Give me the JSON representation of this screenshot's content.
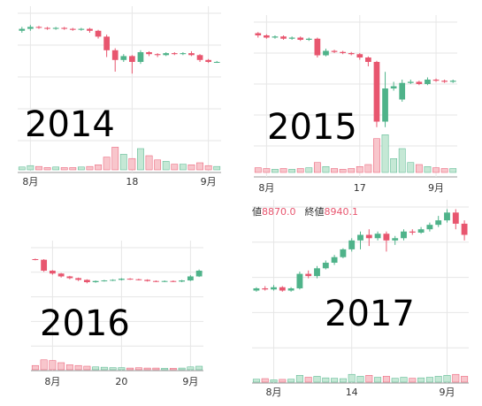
{
  "chart_data": [
    {
      "type": "candlestick",
      "annotation": "2014",
      "up_color": "#4fb38a",
      "down_color": "#e8566f",
      "volume_up_color": "#c5e8d5",
      "volume_down_color": "#f8c6cc",
      "categories": [
        null,
        "8月",
        null,
        null,
        null,
        null,
        null,
        null,
        null,
        null,
        null,
        null,
        null,
        "18",
        null,
        null,
        null,
        null,
        null,
        null,
        null,
        null,
        "9月",
        null
      ],
      "ohlc": [
        [
          82,
          84,
          86,
          80
        ],
        [
          84,
          86,
          88,
          82
        ],
        [
          86,
          85,
          87,
          84
        ],
        [
          85,
          84,
          86,
          83
        ],
        [
          84,
          85,
          86,
          83
        ],
        [
          85,
          84,
          86,
          83
        ],
        [
          84,
          83,
          85,
          82
        ],
        [
          83,
          84,
          85,
          82
        ],
        [
          84,
          82,
          85,
          80
        ],
        [
          82,
          76,
          83,
          74
        ],
        [
          76,
          62,
          78,
          55
        ],
        [
          62,
          52,
          64,
          40
        ],
        [
          52,
          56,
          58,
          50
        ],
        [
          56,
          50,
          57,
          38
        ],
        [
          50,
          60,
          62,
          48
        ],
        [
          60,
          58,
          61,
          56
        ],
        [
          58,
          57,
          59,
          55
        ],
        [
          57,
          59,
          60,
          56
        ],
        [
          59,
          58,
          60,
          57
        ],
        [
          58,
          59,
          60,
          57
        ],
        [
          59,
          57,
          61,
          56
        ],
        [
          57,
          52,
          58,
          50
        ],
        [
          52,
          50,
          53,
          49
        ],
        [
          50,
          50,
          51,
          49
        ]
      ],
      "volume": [
        10,
        15,
        12,
        8,
        10,
        8,
        8,
        10,
        12,
        18,
        45,
        80,
        55,
        40,
        75,
        50,
        35,
        30,
        20,
        20,
        18,
        25,
        15,
        12
      ],
      "ylim": [
        0,
        100
      ],
      "volume_lim": [
        0,
        100
      ]
    },
    {
      "type": "candlestick",
      "annotation": "2015",
      "up_color": "#4fb38a",
      "down_color": "#e8566f",
      "volume_up_color": "#c5e8d5",
      "volume_down_color": "#f8c6cc",
      "categories": [
        null,
        "8月",
        null,
        null,
        null,
        null,
        null,
        null,
        null,
        null,
        null,
        null,
        "17",
        null,
        null,
        null,
        null,
        null,
        null,
        null,
        null,
        "9月",
        null,
        null
      ],
      "ohlc": [
        [
          90,
          88,
          91,
          86
        ],
        [
          88,
          86,
          89,
          85
        ],
        [
          86,
          87,
          88,
          85
        ],
        [
          87,
          85,
          88,
          84
        ],
        [
          85,
          86,
          87,
          84
        ],
        [
          86,
          84,
          87,
          83
        ],
        [
          84,
          85,
          86,
          83
        ],
        [
          85,
          70,
          86,
          68
        ],
        [
          70,
          74,
          76,
          69
        ],
        [
          74,
          73,
          75,
          72
        ],
        [
          73,
          72,
          74,
          71
        ],
        [
          72,
          71,
          73,
          70
        ],
        [
          71,
          68,
          72,
          66
        ],
        [
          68,
          64,
          69,
          60
        ],
        [
          64,
          10,
          65,
          5
        ],
        [
          10,
          40,
          55,
          5
        ],
        [
          40,
          42,
          46,
          38
        ],
        [
          30,
          45,
          48,
          28
        ],
        [
          45,
          46,
          48,
          44
        ],
        [
          46,
          44,
          47,
          43
        ],
        [
          44,
          48,
          50,
          43
        ],
        [
          48,
          47,
          49,
          46
        ],
        [
          47,
          46,
          48,
          45
        ],
        [
          46,
          47,
          48,
          45
        ]
      ],
      "volume": [
        12,
        10,
        8,
        10,
        8,
        10,
        12,
        25,
        15,
        10,
        8,
        10,
        15,
        20,
        85,
        95,
        35,
        60,
        25,
        20,
        15,
        12,
        10,
        10
      ],
      "ylim": [
        0,
        100
      ],
      "volume_lim": [
        0,
        100
      ]
    },
    {
      "type": "candlestick",
      "annotation": "2016",
      "up_color": "#4fb38a",
      "down_color": "#e8566f",
      "volume_up_color": "#c5e8d5",
      "volume_down_color": "#f8c6cc",
      "categories": [
        null,
        null,
        "8月",
        null,
        null,
        null,
        null,
        null,
        null,
        null,
        "20",
        null,
        null,
        null,
        null,
        null,
        null,
        null,
        "9月",
        null
      ],
      "ohlc": [
        [
          80,
          79,
          81,
          78
        ],
        [
          79,
          60,
          80,
          58
        ],
        [
          60,
          55,
          61,
          53
        ],
        [
          55,
          50,
          56,
          48
        ],
        [
          50,
          47,
          51,
          45
        ],
        [
          47,
          44,
          48,
          42
        ],
        [
          44,
          40,
          45,
          38
        ],
        [
          40,
          42,
          43,
          39
        ],
        [
          42,
          43,
          44,
          41
        ],
        [
          43,
          44,
          45,
          42
        ],
        [
          44,
          46,
          47,
          43
        ],
        [
          46,
          45,
          47,
          44
        ],
        [
          45,
          44,
          46,
          43
        ],
        [
          44,
          42,
          45,
          41
        ],
        [
          42,
          41,
          43,
          40
        ],
        [
          41,
          42,
          43,
          40
        ],
        [
          42,
          41,
          43,
          40
        ],
        [
          41,
          43,
          44,
          40
        ],
        [
          43,
          50,
          52,
          42
        ],
        [
          50,
          60,
          62,
          49
        ]
      ],
      "volume": [
        30,
        70,
        65,
        50,
        35,
        30,
        25,
        20,
        18,
        15,
        15,
        12,
        14,
        12,
        12,
        10,
        10,
        12,
        20,
        25
      ],
      "ylim": [
        0,
        100
      ],
      "volume_lim": [
        0,
        100
      ]
    },
    {
      "type": "candlestick",
      "annotation": "2017",
      "up_color": "#4fb38a",
      "down_color": "#e8566f",
      "volume_up_color": "#c5e8d5",
      "volume_down_color": "#f8c6cc",
      "info": [
        {
          "label": "値",
          "value": "8870.0"
        },
        {
          "label": "終値",
          "value": "8940.1"
        }
      ],
      "categories": [
        null,
        null,
        "8月",
        null,
        null,
        null,
        null,
        null,
        null,
        null,
        null,
        "14",
        null,
        null,
        null,
        null,
        null,
        null,
        null,
        null,
        null,
        null,
        "9月",
        null,
        null
      ],
      "ohlc": [
        [
          25,
          27,
          28,
          24
        ],
        [
          27,
          26,
          29,
          25
        ],
        [
          26,
          28,
          30,
          25
        ],
        [
          28,
          25,
          29,
          24
        ],
        [
          25,
          27,
          28,
          24
        ],
        [
          27,
          40,
          42,
          26
        ],
        [
          40,
          38,
          43,
          36
        ],
        [
          38,
          45,
          47,
          36
        ],
        [
          45,
          50,
          52,
          44
        ],
        [
          50,
          55,
          57,
          48
        ],
        [
          55,
          62,
          63,
          54
        ],
        [
          62,
          70,
          72,
          60
        ],
        [
          70,
          75,
          78,
          62
        ],
        [
          75,
          72,
          80,
          65
        ],
        [
          72,
          76,
          78,
          70
        ],
        [
          76,
          70,
          78,
          60
        ],
        [
          70,
          72,
          74,
          66
        ],
        [
          72,
          78,
          80,
          70
        ],
        [
          78,
          77,
          80,
          75
        ],
        [
          77,
          80,
          82,
          76
        ],
        [
          80,
          84,
          86,
          78
        ],
        [
          84,
          88,
          92,
          82
        ],
        [
          88,
          95,
          98,
          86
        ],
        [
          95,
          85,
          98,
          80
        ],
        [
          85,
          75,
          88,
          70
        ]
      ],
      "volume": [
        15,
        18,
        12,
        14,
        15,
        35,
        25,
        30,
        22,
        20,
        18,
        40,
        30,
        35,
        25,
        30,
        20,
        25,
        20,
        22,
        25,
        30,
        35,
        40,
        30
      ],
      "ylim": [
        0,
        100
      ],
      "volume_lim": [
        0,
        100
      ]
    }
  ]
}
